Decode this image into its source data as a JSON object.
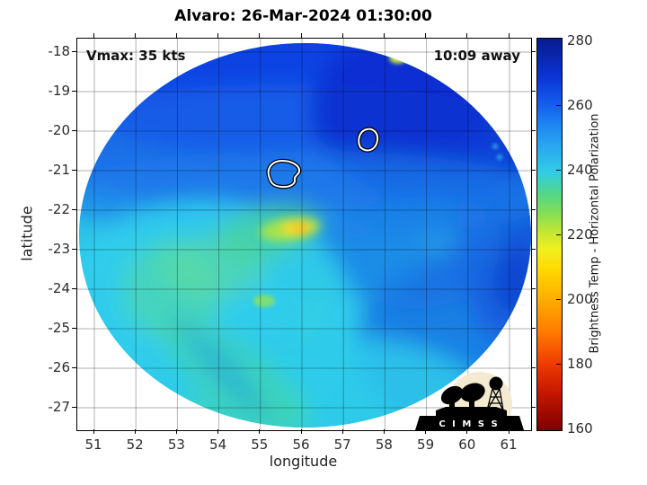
{
  "title": "Alvaro: 26-Mar-2024 01:30:00",
  "annotations": {
    "vmax": "Vmax: 35 kts",
    "time_away": "10:09 away"
  },
  "axes": {
    "x": {
      "label": "longitude",
      "ticks": [
        51,
        52,
        53,
        54,
        55,
        56,
        57,
        58,
        59,
        60,
        61
      ]
    },
    "y": {
      "label": "latitude",
      "ticks": [
        -18,
        -19,
        -20,
        -21,
        -22,
        -23,
        -24,
        -25,
        -26,
        -27
      ]
    }
  },
  "colorbar": {
    "label": "Brightness Temp - Horizontal Polarization",
    "ticks": [
      280,
      260,
      240,
      220,
      200,
      180,
      160
    ],
    "min": 160,
    "max": 280
  },
  "logo": {
    "text": "C I M S S"
  },
  "colors": {
    "swath_warm_blue": "#0b43e3",
    "swath_cyan": "#2cc4e8",
    "burst_yellow": "#ffd92a",
    "contour_white": "#ffffff"
  },
  "chart_data": {
    "type": "heatmap",
    "title": "Alvaro: 26-Mar-2024 01:30:00",
    "xlabel": "longitude",
    "ylabel": "latitude",
    "xlim": [
      50.6,
      61.5
    ],
    "ylim": [
      -27.6,
      -17.7
    ],
    "grid": true,
    "colorbar": {
      "label": "Brightness Temp - Horizontal Polarization",
      "range": [
        160,
        280
      ],
      "ticks": [
        160,
        180,
        200,
        220,
        240,
        260,
        280
      ],
      "colormap": "jet-like: dark red 160K -> orange 200K -> yellow-green 220K -> cyan 240K -> blue 260K -> navy 280K"
    },
    "storm": {
      "name": "Alvaro",
      "datetime": "26-Mar-2024 01:30:00",
      "vmax_kts": 35,
      "time_away": "10:09"
    },
    "swath": {
      "shape": "circular",
      "center_lon": 56.1,
      "center_lat": -22.6,
      "radius_deg": 5.45
    },
    "features": [
      {
        "desc": "warm convective burst (yellow/orange, Tb ~200-210 K) just north of storm center",
        "lon": 55.9,
        "lat": -22.5
      },
      {
        "desc": "white/black contour blob 1",
        "lon": 55.5,
        "lat": -21.1
      },
      {
        "desc": "white/black contour blob 2 (smaller)",
        "lon": 57.6,
        "lat": -20.2
      },
      {
        "desc": "deep blue region (Tb ~260-275 K) over northern half of swath, darkest at top-right and right edge",
        "lat_range": [
          -17.7,
          -20.5
        ]
      },
      {
        "desc": "cyan region (Tb ~235-245 K) over southern/western swath"
      },
      {
        "desc": "green patches (Tb ~220-230 K) west and south-west of center and in curved band near center",
        "lon": 53.5,
        "lat": -23.0
      },
      {
        "desc": "small bright yellow-green speck on northern swath edge",
        "lon": 58.3,
        "lat": -18.1
      },
      {
        "desc": "small green speck south of center",
        "lon": 55.1,
        "lat": -24.4
      }
    ]
  }
}
